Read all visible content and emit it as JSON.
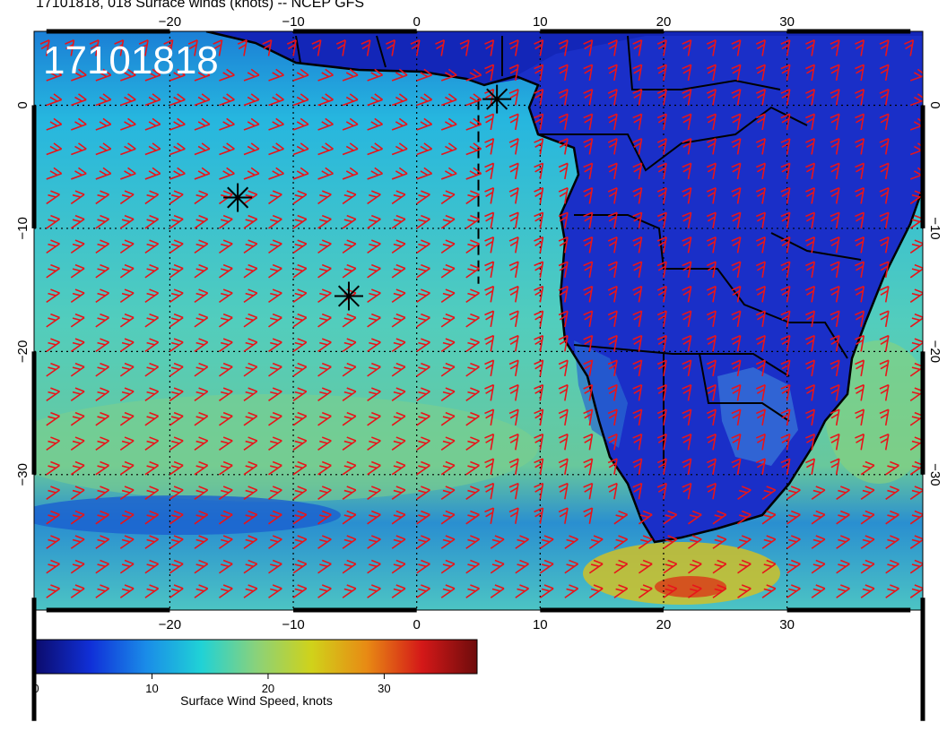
{
  "title": "17101818, 018 Surface winds (knots) -- NCEP GFS",
  "stamp": "17101818",
  "map": {
    "lon_range": [
      -31,
      41
    ],
    "lat_range": [
      -41,
      6
    ],
    "lon_ticks": [
      -20,
      -10,
      0,
      10,
      20,
      30
    ],
    "lat_ticks": [
      0,
      -10,
      -20,
      -30
    ],
    "lon_tick_labels": [
      "−20",
      "−10",
      "0",
      "10",
      "20",
      "30"
    ],
    "lat_tick_labels": [
      "0",
      "−10",
      "−20",
      "−30"
    ],
    "grid": "dotted every 10 degrees",
    "markers": [
      {
        "name": "asterisk",
        "lon": -14.5,
        "lat": -7.5
      },
      {
        "name": "asterisk",
        "lon": -5.5,
        "lat": -15.5
      },
      {
        "name": "asterisk",
        "lon": 6.5,
        "lat": 0.5
      }
    ],
    "dashed_track": {
      "lon": 5,
      "lat_from": 0.5,
      "lat_to": -14.5
    },
    "colors": {
      "barb": "#e8141a",
      "coast": "#000000"
    }
  },
  "colorbar": {
    "range": [
      0,
      38
    ],
    "ticks": [
      0,
      10,
      20,
      30
    ],
    "tick_labels": [
      "0",
      "10",
      "20",
      "30"
    ],
    "label": "Surface Wind Speed, knots",
    "stops": [
      "#0c0c6e",
      "#1030d8",
      "#1a8ce8",
      "#20d2d6",
      "#8ad27a",
      "#d0d21a",
      "#e88a14",
      "#d41818",
      "#6e0c0c"
    ]
  }
}
